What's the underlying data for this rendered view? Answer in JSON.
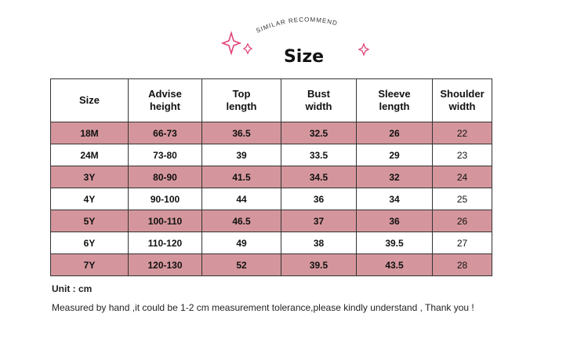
{
  "header": {
    "badge": "SIMILAR RECOMMEND",
    "title": "Size"
  },
  "table": {
    "columns": [
      "Size",
      "Advise height",
      "Top length",
      "Bust width",
      "Sleeve length",
      "Shoulder width"
    ],
    "rows": [
      [
        "18M",
        "66-73",
        "36.5",
        "32.5",
        "26",
        "22"
      ],
      [
        "24M",
        "73-80",
        "39",
        "33.5",
        "29",
        "23"
      ],
      [
        "3Y",
        "80-90",
        "41.5",
        "34.5",
        "32",
        "24"
      ],
      [
        "4Y",
        "90-100",
        "44",
        "36",
        "34",
        "25"
      ],
      [
        "5Y",
        "100-110",
        "46.5",
        "37",
        "36",
        "26"
      ],
      [
        "6Y",
        "110-120",
        "49",
        "38",
        "39.5",
        "27"
      ],
      [
        "7Y",
        "120-130",
        "52",
        "39.5",
        "43.5",
        "28"
      ]
    ],
    "highlight_color": "#d4969c"
  },
  "notes": {
    "unit": "Unit : cm",
    "tolerance": "Measured by hand ,it could be 1-2 cm measurement tolerance,please kindly understand , Thank you !"
  }
}
